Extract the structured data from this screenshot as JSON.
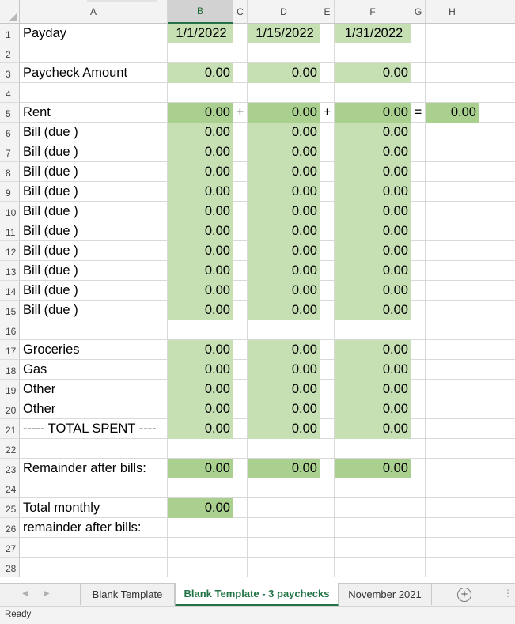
{
  "columns": [
    {
      "id": "A",
      "label": "A",
      "width": 187
    },
    {
      "id": "B",
      "label": "B",
      "width": 83,
      "selected": true
    },
    {
      "id": "C",
      "label": "C",
      "width": 18
    },
    {
      "id": "D",
      "label": "D",
      "width": 92
    },
    {
      "id": "E",
      "label": "E",
      "width": 18
    },
    {
      "id": "F",
      "label": "F",
      "width": 97
    },
    {
      "id": "G",
      "label": "G",
      "width": 18
    },
    {
      "id": "H",
      "label": "H",
      "width": 68
    },
    {
      "id": "I",
      "label": "",
      "width": 50
    }
  ],
  "rows": [
    {
      "n": "1",
      "cells": {
        "A": "Payday",
        "B": "1/1/2022",
        "D": "1/15/2022",
        "F": "1/31/2022"
      },
      "fill": {
        "B": "light",
        "D": "light",
        "F": "light"
      }
    },
    {
      "n": "2",
      "cells": {},
      "fill": {}
    },
    {
      "n": "3",
      "cells": {
        "A": "Paycheck Amount",
        "B": "0.00",
        "D": "0.00",
        "F": "0.00"
      },
      "fill": {
        "B": "light",
        "D": "light",
        "F": "light"
      }
    },
    {
      "n": "4",
      "cells": {},
      "fill": {}
    },
    {
      "n": "5",
      "cells": {
        "A": "Rent",
        "B": "0.00",
        "C": "+",
        "D": "0.00",
        "E": "+",
        "F": "0.00",
        "G": "=",
        "H": "0.00"
      },
      "fill": {
        "B": "dark",
        "D": "dark",
        "F": "dark",
        "H": "dark"
      }
    },
    {
      "n": "6",
      "cells": {
        "A": "Bill (due )",
        "B": "0.00",
        "D": "0.00",
        "F": "0.00"
      },
      "fill": {
        "B": "light",
        "D": "light",
        "F": "light"
      }
    },
    {
      "n": "7",
      "cells": {
        "A": "Bill (due )",
        "B": "0.00",
        "D": "0.00",
        "F": "0.00"
      },
      "fill": {
        "B": "light",
        "D": "light",
        "F": "light"
      }
    },
    {
      "n": "8",
      "cells": {
        "A": "Bill (due )",
        "B": "0.00",
        "D": "0.00",
        "F": "0.00"
      },
      "fill": {
        "B": "light",
        "D": "light",
        "F": "light"
      }
    },
    {
      "n": "9",
      "cells": {
        "A": "Bill (due )",
        "B": "0.00",
        "D": "0.00",
        "F": "0.00"
      },
      "fill": {
        "B": "light",
        "D": "light",
        "F": "light"
      }
    },
    {
      "n": "10",
      "cells": {
        "A": "Bill (due )",
        "B": "0.00",
        "D": "0.00",
        "F": "0.00"
      },
      "fill": {
        "B": "light",
        "D": "light",
        "F": "light"
      }
    },
    {
      "n": "11",
      "cells": {
        "A": "Bill (due )",
        "B": "0.00",
        "D": "0.00",
        "F": "0.00"
      },
      "fill": {
        "B": "light",
        "D": "light",
        "F": "light"
      }
    },
    {
      "n": "12",
      "cells": {
        "A": "Bill (due )",
        "B": "0.00",
        "D": "0.00",
        "F": "0.00"
      },
      "fill": {
        "B": "light",
        "D": "light",
        "F": "light"
      }
    },
    {
      "n": "13",
      "cells": {
        "A": "Bill (due )",
        "B": "0.00",
        "D": "0.00",
        "F": "0.00"
      },
      "fill": {
        "B": "light",
        "D": "light",
        "F": "light"
      }
    },
    {
      "n": "14",
      "cells": {
        "A": "Bill (due )",
        "B": "0.00",
        "D": "0.00",
        "F": "0.00"
      },
      "fill": {
        "B": "light",
        "D": "light",
        "F": "light"
      }
    },
    {
      "n": "15",
      "cells": {
        "A": "Bill (due )",
        "B": "0.00",
        "D": "0.00",
        "F": "0.00"
      },
      "fill": {
        "B": "light",
        "D": "light",
        "F": "light"
      }
    },
    {
      "n": "16",
      "cells": {},
      "fill": {}
    },
    {
      "n": "17",
      "cells": {
        "A": "Groceries",
        "B": "0.00",
        "D": "0.00",
        "F": "0.00"
      },
      "fill": {
        "B": "light",
        "D": "light",
        "F": "light"
      }
    },
    {
      "n": "18",
      "cells": {
        "A": "Gas",
        "B": "0.00",
        "D": "0.00",
        "F": "0.00"
      },
      "fill": {
        "B": "light",
        "D": "light",
        "F": "light"
      }
    },
    {
      "n": "19",
      "cells": {
        "A": "Other",
        "B": "0.00",
        "D": "0.00",
        "F": "0.00"
      },
      "fill": {
        "B": "light",
        "D": "light",
        "F": "light"
      }
    },
    {
      "n": "20",
      "cells": {
        "A": "Other",
        "B": "0.00",
        "D": "0.00",
        "F": "0.00"
      },
      "fill": {
        "B": "light",
        "D": "light",
        "F": "light"
      }
    },
    {
      "n": "21",
      "cells": {
        "A": "----- TOTAL SPENT ----",
        "B": "0.00",
        "D": "0.00",
        "F": "0.00"
      },
      "fill": {
        "B": "light",
        "D": "light",
        "F": "light"
      }
    },
    {
      "n": "22",
      "cells": {},
      "fill": {}
    },
    {
      "n": "23",
      "cells": {
        "A": "Remainder after bills:",
        "B": "0.00",
        "D": "0.00",
        "F": "0.00"
      },
      "fill": {
        "B": "dark",
        "D": "dark",
        "F": "dark"
      }
    },
    {
      "n": "24",
      "cells": {},
      "fill": {}
    },
    {
      "n": "25",
      "cells": {
        "A": "Total monthly",
        "B": "0.00"
      },
      "fill": {
        "B": "dark"
      }
    },
    {
      "n": "26",
      "cells": {
        "A": "remainder after bills:"
      },
      "fill": {}
    },
    {
      "n": "27",
      "cells": {},
      "fill": {}
    },
    {
      "n": "28",
      "cells": {},
      "fill": {}
    }
  ],
  "sheet_tabs": [
    {
      "label": "Blank Template",
      "active": false
    },
    {
      "label": "Blank Template - 3 paychecks",
      "active": true
    },
    {
      "label": "November 2021",
      "active": false
    }
  ],
  "icons": {
    "add_sheet": "plus-circle-icon",
    "nav_prev": "triangle-left-icon",
    "nav_next": "triangle-right-icon",
    "more": "vertical-ellipsis-icon"
  },
  "add_sheet_glyph": "+",
  "more_glyph": "⋮",
  "status": "Ready",
  "colors": {
    "light_fill": "#c6e0b4",
    "dark_fill": "#a9d08e",
    "accent": "#217346"
  }
}
